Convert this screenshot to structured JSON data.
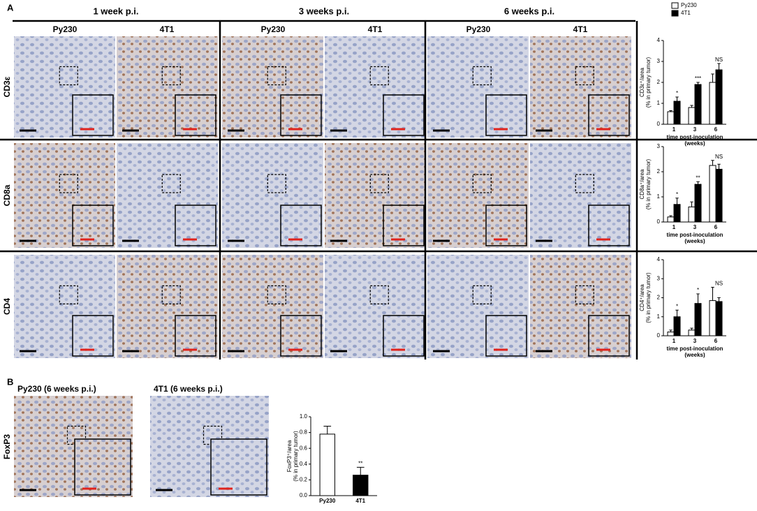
{
  "panel_labels": [
    "A",
    "B"
  ],
  "panel_a": {
    "columns": [
      "1 week p.i.",
      "3 weeks p.i.",
      "6 weeks p.i."
    ],
    "subcolumns": [
      "Py230",
      "4T1"
    ],
    "rows": [
      "CD3ε",
      "CD8a",
      "CD4"
    ]
  },
  "panel_b": {
    "images": [
      "Py230 (6 weeks p.i.)",
      "4T1 (6 weeks p.i.)"
    ],
    "row": "FoxP3"
  },
  "chart_data": [
    {
      "type": "bar",
      "categories": [
        "1",
        "3",
        "6"
      ],
      "ylabel": [
        "CD3ε⁺/area",
        "(% in primary tumor)"
      ],
      "xlabel": [
        "time post-inoculation",
        "(weeks)"
      ],
      "ylim": [
        0,
        4
      ],
      "yticks": [
        0,
        1,
        2,
        3,
        4
      ],
      "legend": "top",
      "series": [
        {
          "name": "Py230",
          "color": "#ffffff",
          "values": [
            0.6,
            0.8,
            2.0
          ],
          "error": [
            0.05,
            0.1,
            0.4
          ]
        },
        {
          "name": "4T1",
          "color": "#000000",
          "values": [
            1.1,
            1.9,
            2.6
          ],
          "error": [
            0.2,
            0.1,
            0.3
          ]
        }
      ],
      "annotations": [
        {
          "category": "1",
          "text": "*"
        },
        {
          "category": "3",
          "text": "***"
        },
        {
          "category": "6",
          "text": "NS"
        }
      ]
    },
    {
      "type": "bar",
      "categories": [
        "1",
        "3",
        "6"
      ],
      "ylabel": [
        "CD8a⁺/area",
        "(% in primary tumor)"
      ],
      "xlabel": [
        "time post-inoculation",
        "(weeks)"
      ],
      "ylim": [
        0,
        3
      ],
      "yticks": [
        0,
        1,
        2,
        3
      ],
      "series": [
        {
          "name": "Py230",
          "color": "#ffffff",
          "values": [
            0.2,
            0.6,
            2.25
          ],
          "error": [
            0.05,
            0.2,
            0.2
          ]
        },
        {
          "name": "4T1",
          "color": "#000000",
          "values": [
            0.7,
            1.5,
            2.1
          ],
          "error": [
            0.25,
            0.1,
            0.2
          ]
        }
      ],
      "annotations": [
        {
          "category": "1",
          "text": "*"
        },
        {
          "category": "3",
          "text": "**"
        },
        {
          "category": "6",
          "text": "NS"
        }
      ]
    },
    {
      "type": "bar",
      "categories": [
        "1",
        "3",
        "6"
      ],
      "ylabel": [
        "CD4⁺/area",
        "(% in primary tumor)"
      ],
      "xlabel": [
        "time post-inoculation",
        "(weeks)"
      ],
      "ylim": [
        0,
        4
      ],
      "yticks": [
        0,
        1,
        2,
        3,
        4
      ],
      "series": [
        {
          "name": "Py230",
          "color": "#ffffff",
          "values": [
            0.2,
            0.3,
            1.85
          ],
          "error": [
            0.1,
            0.1,
            0.7
          ]
        },
        {
          "name": "4T1",
          "color": "#000000",
          "values": [
            1.0,
            1.7,
            1.8
          ],
          "error": [
            0.35,
            0.5,
            0.2
          ]
        }
      ],
      "annotations": [
        {
          "category": "1",
          "text": "*"
        },
        {
          "category": "3",
          "text": "*"
        },
        {
          "category": "6",
          "text": "NS"
        }
      ]
    },
    {
      "type": "bar",
      "categories": [
        "Py230",
        "4T1"
      ],
      "ylabel": [
        "FoxP3⁺/area",
        "(% in primary tumor)"
      ],
      "ylim": [
        0,
        1.0
      ],
      "yticks": [
        {
          "value": 0,
          "label": "0.0"
        },
        0.2,
        0.4,
        0.6,
        0.8,
        {
          "value": 1.0,
          "label": "1.0"
        }
      ],
      "colors": [
        "#ffffff",
        "#000000"
      ],
      "series": [
        {
          "values": [
            0.78,
            0.26
          ],
          "error": [
            0.1,
            0.1
          ]
        }
      ],
      "annotations": [
        {
          "category": "4T1",
          "text": "**"
        }
      ]
    }
  ]
}
